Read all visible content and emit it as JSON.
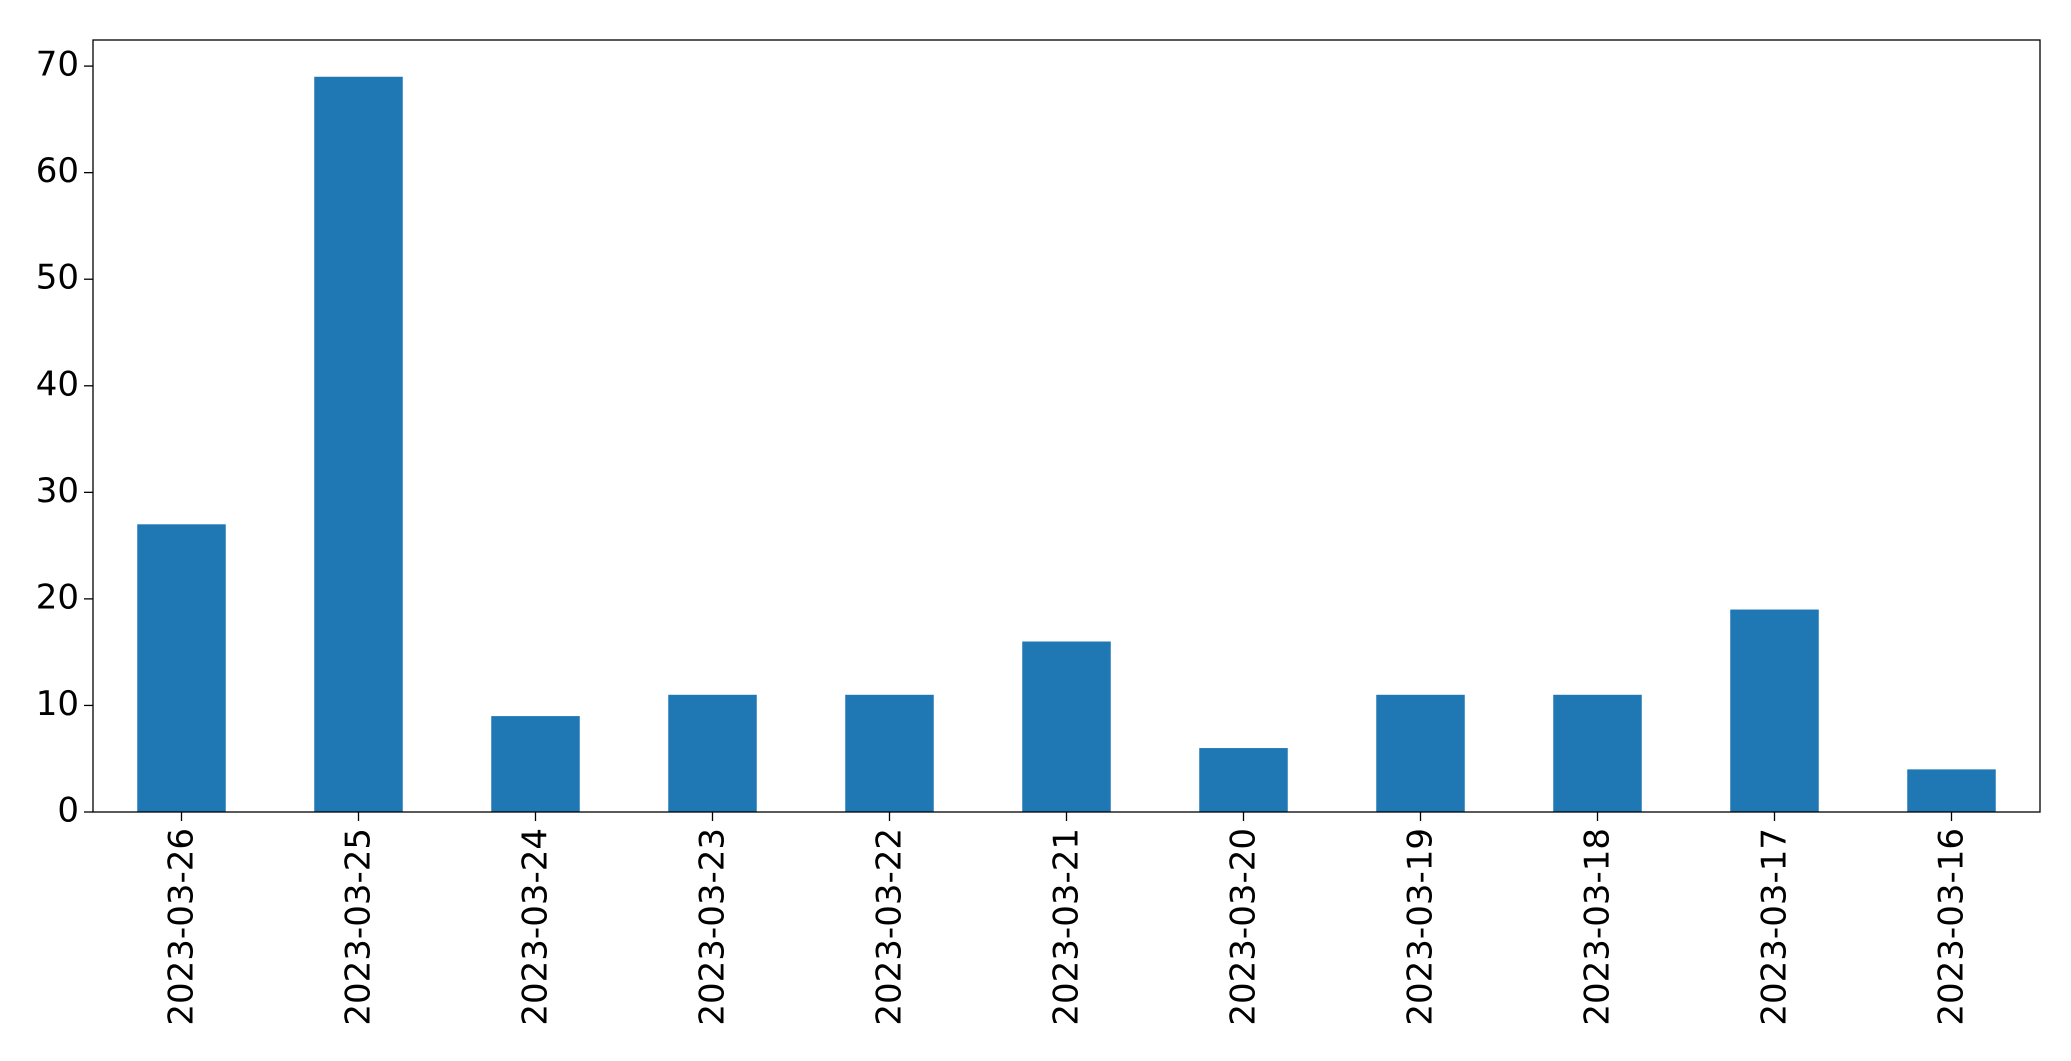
{
  "chart_data": {
    "type": "bar",
    "categories": [
      "2023-03-26",
      "2023-03-25",
      "2023-03-24",
      "2023-03-23",
      "2023-03-22",
      "2023-03-21",
      "2023-03-20",
      "2023-03-19",
      "2023-03-18",
      "2023-03-17",
      "2023-03-16"
    ],
    "values": [
      27,
      69,
      9,
      11,
      11,
      16,
      6,
      11,
      11,
      19,
      4
    ],
    "color": "#1f77b4",
    "ylim": [
      0,
      72.45
    ],
    "yticks": [
      0,
      10,
      20,
      30,
      40,
      50,
      60,
      70
    ],
    "grid": false
  }
}
